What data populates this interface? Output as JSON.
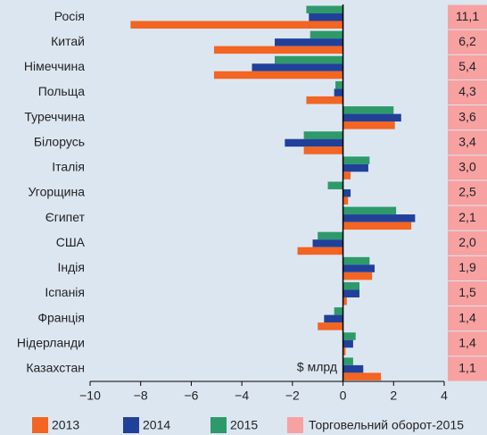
{
  "chart_data": {
    "type": "hbar",
    "categories": [
      "Росія",
      "Китай",
      "Німеччина",
      "Польща",
      "Туреччина",
      "Білорусь",
      "Італія",
      "Угорщина",
      "Єгипет",
      "США",
      "Індія",
      "Іспанія",
      "Франція",
      "Нідерланди",
      "Казахстан"
    ],
    "series": [
      {
        "name": "2013",
        "color": "#f26522",
        "values": [
          -8.4,
          -5.1,
          -5.1,
          -1.45,
          2.05,
          -1.55,
          0.3,
          0.2,
          2.7,
          -1.8,
          1.15,
          0.15,
          -1.0,
          0.1,
          1.5
        ]
      },
      {
        "name": "2014",
        "color": "#21409a",
        "values": [
          -1.35,
          -2.7,
          -3.6,
          -0.35,
          2.3,
          -2.3,
          1.0,
          0.3,
          2.85,
          -1.2,
          1.25,
          0.65,
          -0.75,
          0.4,
          0.8
        ]
      },
      {
        "name": "2015",
        "color": "#2e9a6a",
        "values": [
          -1.45,
          -1.3,
          -2.7,
          -0.3,
          2.0,
          -1.55,
          1.05,
          -0.6,
          2.1,
          -1.0,
          1.05,
          0.65,
          -0.35,
          0.5,
          0.4
        ]
      }
    ],
    "turnover": {
      "name": "Торговельний оборот-2015",
      "color": "#f7a1a1",
      "values": [
        11.1,
        6.2,
        5.4,
        4.3,
        3.6,
        3.4,
        3.0,
        2.5,
        2.1,
        2.0,
        1.9,
        1.5,
        1.4,
        1.4,
        1.1
      ],
      "value_labels": [
        "11,1",
        "6,2",
        "5,4",
        "4,3",
        "3,6",
        "3,4",
        "3,0",
        "2,5",
        "2,1",
        "2,0",
        "1,9",
        "1,5",
        "1,4",
        "1,4",
        "1,1"
      ]
    },
    "annotation": "$ млрд",
    "xlim": [
      -10,
      4
    ],
    "xticks": [
      {
        "value": -10,
        "label": "−10"
      },
      {
        "value": -8,
        "label": "−8"
      },
      {
        "value": -6,
        "label": "−6"
      },
      {
        "value": -4,
        "label": "−4"
      },
      {
        "value": -2,
        "label": "−2"
      },
      0,
      2,
      4
    ]
  }
}
